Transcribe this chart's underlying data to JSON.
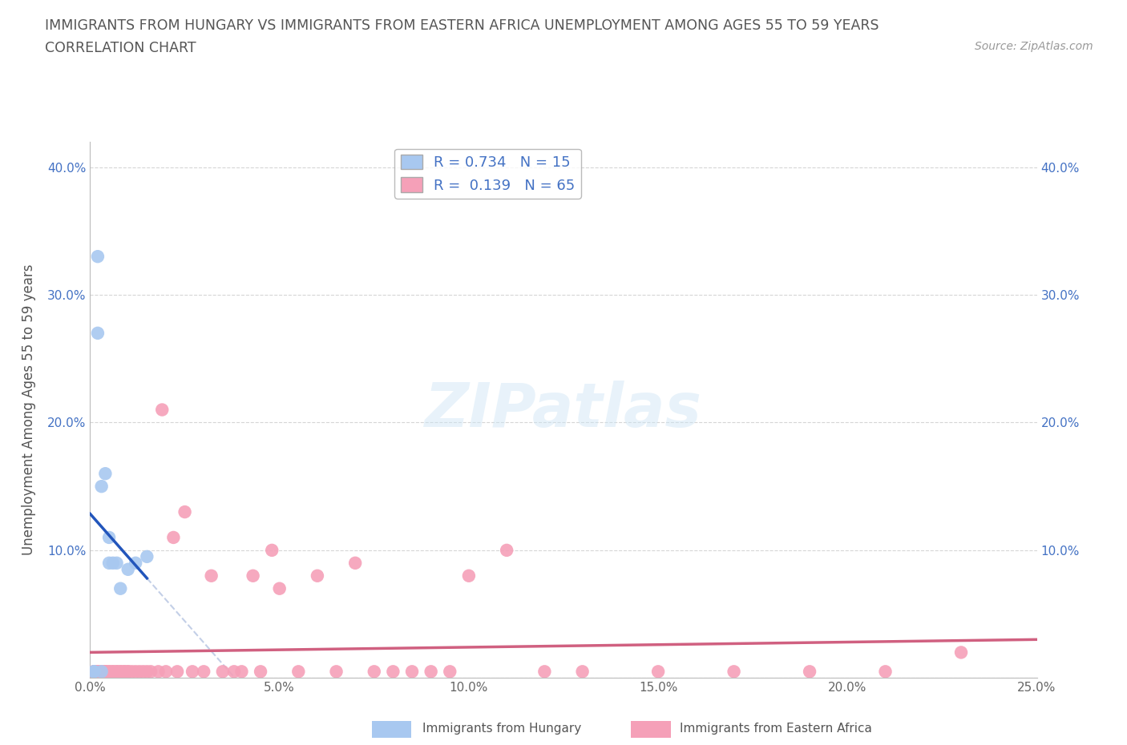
{
  "title_line1": "IMMIGRANTS FROM HUNGARY VS IMMIGRANTS FROM EASTERN AFRICA UNEMPLOYMENT AMONG AGES 55 TO 59 YEARS",
  "title_line2": "CORRELATION CHART",
  "source_text": "Source: ZipAtlas.com",
  "ylabel": "Unemployment Among Ages 55 to 59 years",
  "watermark": "ZIPatlas",
  "xlim": [
    0.0,
    0.25
  ],
  "ylim": [
    0.0,
    0.42
  ],
  "xticks": [
    0.0,
    0.05,
    0.1,
    0.15,
    0.2,
    0.25
  ],
  "xtick_labels": [
    "0.0%",
    "5.0%",
    "10.0%",
    "15.0%",
    "20.0%",
    "25.0%"
  ],
  "yticks": [
    0.0,
    0.1,
    0.2,
    0.3,
    0.4
  ],
  "ytick_labels": [
    "",
    "10.0%",
    "20.0%",
    "30.0%",
    "40.0%"
  ],
  "hungary_color": "#a8c8f0",
  "hungary_line_color": "#2255bb",
  "eastern_africa_color": "#f5a0b8",
  "eastern_africa_line_color": "#d06080",
  "legend_label_hungary": "Immigrants from Hungary",
  "legend_label_eastern": "Immigrants from Eastern Africa",
  "hungary_R": 0.734,
  "hungary_N": 15,
  "eastern_africa_R": 0.139,
  "eastern_africa_N": 65,
  "hungary_x": [
    0.001,
    0.001,
    0.002,
    0.002,
    0.003,
    0.003,
    0.004,
    0.005,
    0.005,
    0.006,
    0.007,
    0.008,
    0.01,
    0.012,
    0.015
  ],
  "hungary_y": [
    0.005,
    0.005,
    0.27,
    0.33,
    0.15,
    0.005,
    0.16,
    0.09,
    0.11,
    0.09,
    0.09,
    0.07,
    0.085,
    0.09,
    0.095
  ],
  "eastern_africa_x": [
    0.001,
    0.001,
    0.001,
    0.001,
    0.002,
    0.002,
    0.002,
    0.003,
    0.003,
    0.003,
    0.004,
    0.004,
    0.004,
    0.005,
    0.005,
    0.006,
    0.006,
    0.007,
    0.007,
    0.008,
    0.008,
    0.009,
    0.009,
    0.01,
    0.01,
    0.011,
    0.012,
    0.013,
    0.014,
    0.015,
    0.016,
    0.018,
    0.019,
    0.02,
    0.022,
    0.023,
    0.025,
    0.027,
    0.03,
    0.032,
    0.035,
    0.038,
    0.04,
    0.043,
    0.045,
    0.048,
    0.05,
    0.055,
    0.06,
    0.065,
    0.07,
    0.075,
    0.08,
    0.085,
    0.09,
    0.095,
    0.1,
    0.11,
    0.12,
    0.13,
    0.15,
    0.17,
    0.19,
    0.21,
    0.23
  ],
  "eastern_africa_y": [
    0.005,
    0.005,
    0.005,
    0.005,
    0.005,
    0.005,
    0.005,
    0.005,
    0.005,
    0.005,
    0.005,
    0.005,
    0.005,
    0.005,
    0.005,
    0.005,
    0.005,
    0.005,
    0.005,
    0.005,
    0.005,
    0.005,
    0.005,
    0.005,
    0.005,
    0.005,
    0.005,
    0.005,
    0.005,
    0.005,
    0.005,
    0.005,
    0.21,
    0.005,
    0.11,
    0.005,
    0.13,
    0.005,
    0.005,
    0.08,
    0.005,
    0.005,
    0.005,
    0.08,
    0.005,
    0.1,
    0.07,
    0.005,
    0.08,
    0.005,
    0.09,
    0.005,
    0.005,
    0.005,
    0.005,
    0.005,
    0.08,
    0.1,
    0.005,
    0.005,
    0.005,
    0.005,
    0.005,
    0.005,
    0.02
  ]
}
